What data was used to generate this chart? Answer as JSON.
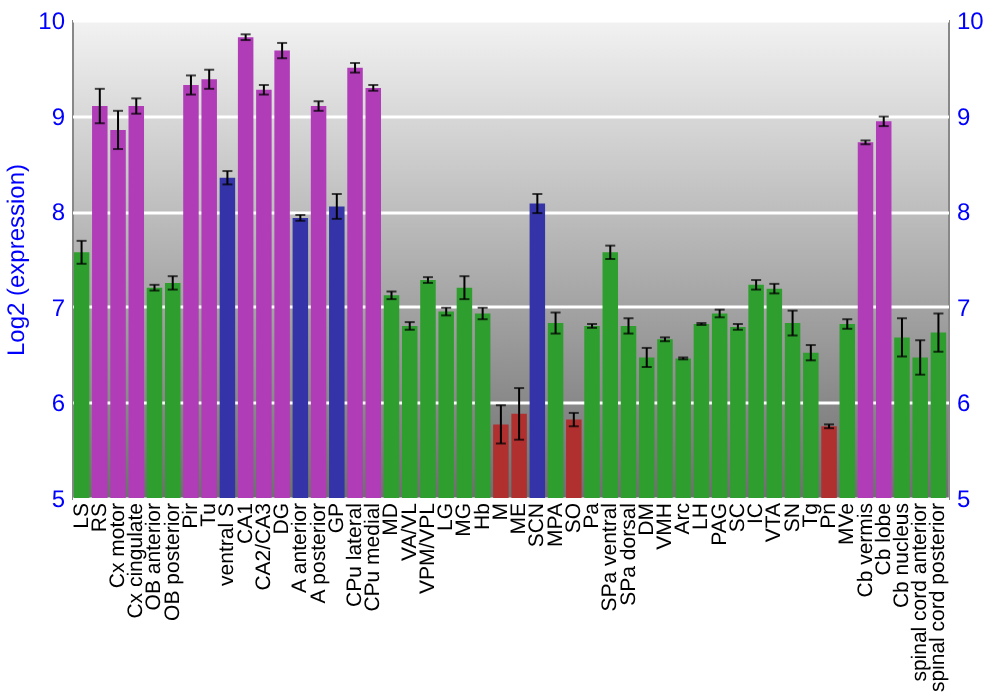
{
  "chart_data": {
    "type": "bar",
    "ylabel": "Log2 (expression)",
    "categories": [
      "LS",
      "RS",
      "Cx motor",
      "Cx cingulate",
      "OB anterior",
      "OB posterior",
      "Pir",
      "Tu",
      "ventral S",
      "CA1",
      "CA2/CA3",
      "DG",
      "A anterior",
      "A posterior",
      "GP",
      "CPu lateral",
      "CPu medial",
      "MD",
      "VA/VL",
      "VPM/VPL",
      "LG",
      "MG",
      "Hb",
      "M",
      "ME",
      "SCN",
      "MPA",
      "SO",
      "Pa",
      "SPa ventral",
      "SPa dorsal",
      "DM",
      "VMH",
      "Arc",
      "LH",
      "PAG",
      "SC",
      "IC",
      "VTA",
      "SN",
      "Tg",
      "Pn",
      "MVe",
      "Cb vermis",
      "Cb lobe",
      "Cb nucleus",
      "spinal cord anterior",
      "spinal cord posterior"
    ],
    "values": [
      7.57,
      9.1,
      8.85,
      9.1,
      7.2,
      7.25,
      9.32,
      9.38,
      8.35,
      9.82,
      9.27,
      9.68,
      7.93,
      9.1,
      8.05,
      9.5,
      9.29,
      7.12,
      6.8,
      7.28,
      6.95,
      7.2,
      6.93,
      5.77,
      5.88,
      8.08,
      6.83,
      5.82,
      6.8,
      7.57,
      6.8,
      6.47,
      6.66,
      6.46,
      6.82,
      6.93,
      6.79,
      7.23,
      7.19,
      6.83,
      6.52,
      5.75,
      6.82,
      8.72,
      8.94,
      6.68,
      6.47,
      6.73
    ],
    "errors": [
      0.12,
      0.18,
      0.2,
      0.08,
      0.03,
      0.07,
      0.1,
      0.1,
      0.07,
      0.03,
      0.05,
      0.08,
      0.03,
      0.05,
      0.13,
      0.05,
      0.03,
      0.04,
      0.04,
      0.03,
      0.04,
      0.12,
      0.06,
      0.2,
      0.27,
      0.1,
      0.11,
      0.07,
      0.02,
      0.07,
      0.08,
      0.1,
      0.02,
      0.01,
      0.01,
      0.04,
      0.03,
      0.05,
      0.05,
      0.13,
      0.08,
      0.02,
      0.05,
      0.02,
      0.05,
      0.2,
      0.18,
      0.2
    ],
    "colors": [
      "#2e9e2e",
      "#b03cb8",
      "#b03cb8",
      "#b03cb8",
      "#2e9e2e",
      "#2e9e2e",
      "#b03cb8",
      "#b03cb8",
      "#3434a8",
      "#b03cb8",
      "#b03cb8",
      "#b03cb8",
      "#3434a8",
      "#b03cb8",
      "#3434a8",
      "#b03cb8",
      "#b03cb8",
      "#2e9e2e",
      "#2e9e2e",
      "#2e9e2e",
      "#2e9e2e",
      "#2e9e2e",
      "#2e9e2e",
      "#b03030",
      "#b03030",
      "#3434a8",
      "#2e9e2e",
      "#b03030",
      "#2e9e2e",
      "#2e9e2e",
      "#2e9e2e",
      "#2e9e2e",
      "#2e9e2e",
      "#2e9e2e",
      "#2e9e2e",
      "#2e9e2e",
      "#2e9e2e",
      "#2e9e2e",
      "#2e9e2e",
      "#2e9e2e",
      "#2e9e2e",
      "#b03030",
      "#2e9e2e",
      "#b03cb8",
      "#b03cb8",
      "#2e9e2e",
      "#2e9e2e",
      "#2e9e2e"
    ],
    "ylim": [
      5,
      10
    ],
    "yticks": [
      5,
      6,
      7,
      8,
      9,
      10
    ],
    "y2lim": [
      5,
      10
    ],
    "y2ticks": [
      5,
      6,
      7,
      8,
      9,
      10
    ],
    "grid": "y"
  }
}
